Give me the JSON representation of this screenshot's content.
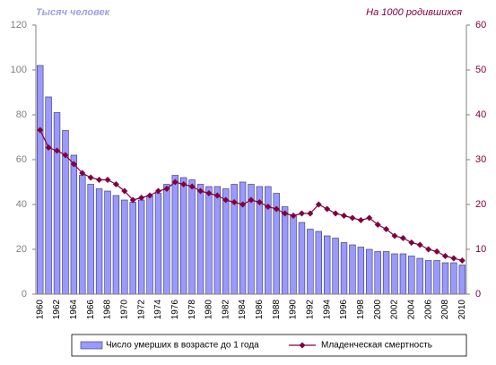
{
  "chart_data": {
    "type": "bar_line",
    "y_label": "Тысяч человек",
    "y2_label": "На 1000 родившихся",
    "categories": [
      "1960",
      null,
      "1962",
      null,
      "1964",
      null,
      "1966",
      null,
      "1968",
      null,
      "1970",
      null,
      "1972",
      null,
      "1974",
      null,
      "1976",
      null,
      "1978",
      null,
      "1980",
      null,
      "1982",
      null,
      "1984",
      null,
      "1986",
      null,
      "1988",
      null,
      "1990",
      null,
      "1992",
      null,
      "1994",
      null,
      "1996",
      null,
      "1998",
      null,
      "2000",
      null,
      "2002",
      null,
      "2004",
      null,
      "2006",
      null,
      "2008",
      null,
      "2010"
    ],
    "series": [
      {
        "name": "Число умерших в возрасте до 1 года",
        "type": "bar",
        "color": "#9999ff",
        "values": [
          102,
          88,
          81,
          73,
          62,
          53,
          49,
          47,
          46,
          44,
          42,
          41,
          42,
          44,
          45,
          49,
          53,
          52,
          51,
          49,
          48,
          48,
          47,
          49,
          50,
          49,
          48,
          48,
          45,
          39,
          35,
          32,
          29,
          28,
          26,
          25,
          23,
          22,
          21,
          20,
          19,
          19,
          18,
          18,
          17,
          16,
          15,
          15,
          14,
          14,
          13
        ]
      },
      {
        "name": "Младенческая смертность",
        "type": "line",
        "axis": "y2",
        "color": "#800040",
        "values": [
          36.6,
          32.7,
          32,
          31,
          29,
          27,
          26,
          25.5,
          25.5,
          24.5,
          23,
          21,
          21.5,
          22,
          23,
          23.5,
          25,
          24.5,
          24,
          23,
          22.5,
          22,
          21,
          20.5,
          20,
          21,
          20.5,
          19.5,
          19,
          18,
          17.5,
          18,
          18,
          20,
          19,
          18,
          17.5,
          17,
          16.5,
          17,
          15.5,
          14.5,
          13,
          12.5,
          11.5,
          11,
          10,
          9.5,
          8.5,
          8,
          7.5
        ]
      }
    ],
    "ylim": [
      0,
      120
    ],
    "yticks": [
      0,
      20,
      40,
      60,
      80,
      100,
      120
    ],
    "y2lim": [
      0,
      60
    ],
    "y2ticks": [
      0,
      10,
      20,
      30,
      40,
      50,
      60
    ],
    "legend": "bottom"
  }
}
